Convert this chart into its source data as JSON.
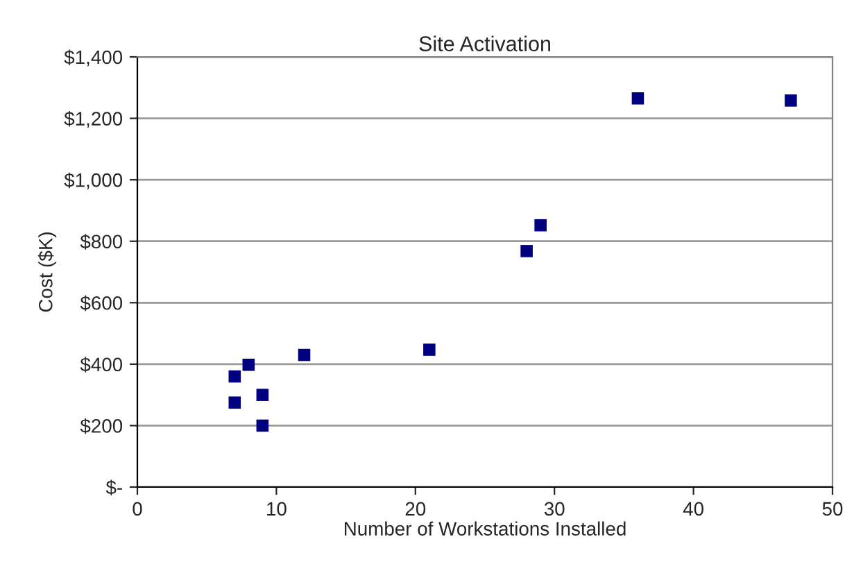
{
  "chart_data": {
    "type": "scatter",
    "title": "Site Activation",
    "xlabel": "Number of Workstations Installed",
    "ylabel": "Cost ($K)",
    "x": [
      7,
      7,
      8,
      9,
      9,
      12,
      21,
      28,
      29,
      36,
      47
    ],
    "series": [
      {
        "color": "#000080",
        "values": [
          275,
          360,
          398,
          300,
          200,
          430,
          447,
          768,
          852,
          1265,
          1258
        ]
      }
    ],
    "xlim": [
      0,
      50
    ],
    "xticks": [
      0,
      10,
      20,
      30,
      40,
      50
    ],
    "ylim": [
      0,
      1400
    ],
    "yticks": [
      {
        "value": 0,
        "label": "$-"
      },
      {
        "value": 200,
        "label": "$200"
      },
      {
        "value": 400,
        "label": "$400"
      },
      {
        "value": 600,
        "label": "$600"
      },
      {
        "value": 800,
        "label": "$800"
      },
      {
        "value": 1000,
        "label": "$1,000"
      },
      {
        "value": 1200,
        "label": "$1,200"
      },
      {
        "value": 1400,
        "label": "$1,400"
      }
    ],
    "grid": "y",
    "marker": "square",
    "legend": false
  }
}
